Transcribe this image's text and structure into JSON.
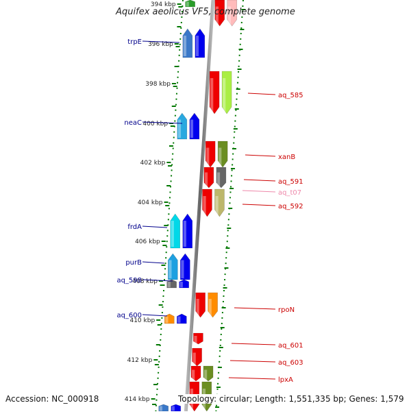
{
  "title": "Aquifex aeolicus VF5, complete genome",
  "footer": {
    "accession": "Accession: NC_000918",
    "topology": "Topology: circular; Length: 1,551,335 bp; Genes: 1,579"
  },
  "axis_ticks": [
    "394 kbp",
    "396 kbp",
    "398 kbp",
    "400 kbp",
    "402 kbp",
    "404 kbp",
    "406 kbp",
    "408 kbp",
    "410 kbp",
    "412 kbp",
    "414 kbp"
  ],
  "gene_labels_left": [
    {
      "name": "trpE",
      "color": "#00008b"
    },
    {
      "name": "neaC",
      "color": "#00008b"
    },
    {
      "name": "frdA",
      "color": "#00008b"
    },
    {
      "name": "purB",
      "color": "#00008b"
    },
    {
      "name": "aq_598",
      "color": "#00008b"
    },
    {
      "name": "aq_600",
      "color": "#00008b"
    }
  ],
  "gene_labels_right": [
    {
      "name": "aq_585",
      "color": "#cc0000"
    },
    {
      "name": "xanB",
      "color": "#cc0000"
    },
    {
      "name": "aq_591",
      "color": "#cc0000"
    },
    {
      "name": "aq_t07",
      "color": "#ee88aa"
    },
    {
      "name": "aq_592",
      "color": "#cc0000"
    },
    {
      "name": "rpoN",
      "color": "#cc0000"
    },
    {
      "name": "aq_601",
      "color": "#cc0000"
    },
    {
      "name": "aq_603",
      "color": "#cc0000"
    },
    {
      "name": "lpxA",
      "color": "#cc0000"
    }
  ],
  "colors": {
    "strand_forward": "#0000ff",
    "strand_reverse": "#ff0000",
    "backbone": "#888888",
    "tick": "#007700"
  }
}
